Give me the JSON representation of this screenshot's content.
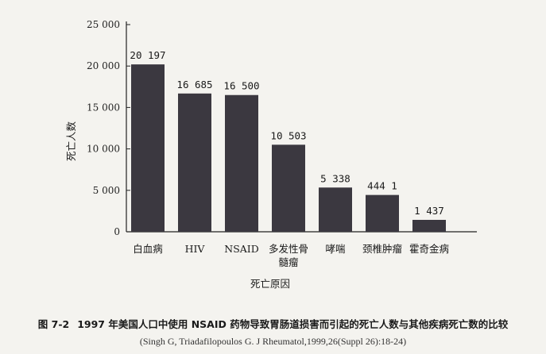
{
  "chart_data": {
    "type": "bar",
    "title": "",
    "xlabel": "死亡原因",
    "ylabel": "死亡人数",
    "ylim": [
      0,
      25000
    ],
    "yticks": [
      0,
      5000,
      10000,
      15000,
      20000,
      25000
    ],
    "ytick_labels": [
      "0",
      "5 000",
      "10 000",
      "15 000",
      "20 000",
      "25 000"
    ],
    "categories": [
      [
        "白血病"
      ],
      [
        "HIV"
      ],
      [
        "NSAID"
      ],
      [
        "多发性骨",
        "髓瘤"
      ],
      [
        "哮喘"
      ],
      [
        "颈椎肿瘤"
      ],
      [
        "霍奇金病"
      ]
    ],
    "values": [
      20197,
      16685,
      16500,
      10503,
      5338,
      4441,
      1437
    ],
    "value_labels": [
      "20 197",
      "16 685",
      "16 500",
      "10 503",
      "5 338",
      "444 1",
      "1 437"
    ],
    "grid": false,
    "bar_color": "#3b3840"
  },
  "caption": {
    "figure_number": "图 7-2",
    "text": "1997 年美国人口中使用 NSAID 药物导致胃肠道损害而引起的死亡人数与其他疾病死亡数的比较"
  },
  "source": "(Singh G, Triadafilopoulos G. J Rheumatol,1999,26(Suppl 26):18-24)"
}
